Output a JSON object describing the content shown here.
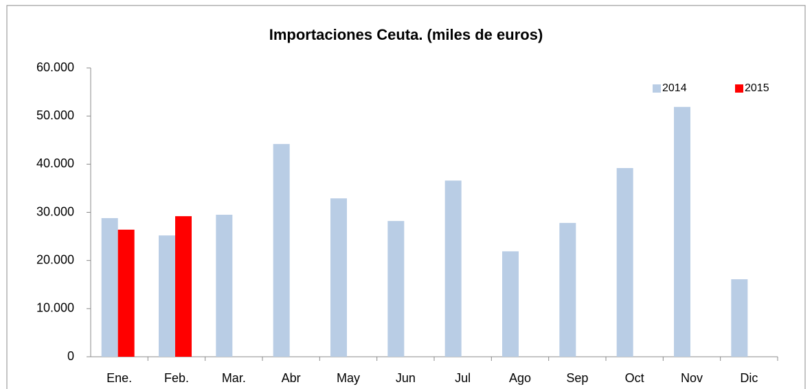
{
  "chart_data": {
    "type": "bar",
    "title": "Importaciones Ceuta.  (miles de euros)",
    "categories": [
      "Ene.",
      "Feb.",
      "Mar.",
      "Abr",
      "May",
      "Jun",
      "Jul",
      "Ago",
      "Sep",
      "Oct",
      "Nov",
      "Dic"
    ],
    "series": [
      {
        "name": "2014",
        "color": "#b9cde5",
        "values": [
          28800,
          25200,
          29500,
          44200,
          32900,
          28200,
          36600,
          21900,
          27800,
          39200,
          51900,
          16100
        ]
      },
      {
        "name": "2015",
        "color": "#ff0000",
        "values": [
          26400,
          29200,
          null,
          null,
          null,
          null,
          null,
          null,
          null,
          null,
          null,
          null
        ]
      }
    ],
    "ylim": [
      0,
      60000
    ],
    "yticks": [
      0,
      {
        "value": 10000,
        "label": "10.000"
      },
      {
        "value": 20000,
        "label": "20.000"
      },
      {
        "value": 30000,
        "label": "30.000"
      },
      {
        "value": 40000,
        "label": "40.000"
      },
      {
        "value": 50000,
        "label": "50.000"
      },
      {
        "value": 60000,
        "label": "60.000"
      }
    ],
    "grid": false,
    "legend": "top-right"
  }
}
